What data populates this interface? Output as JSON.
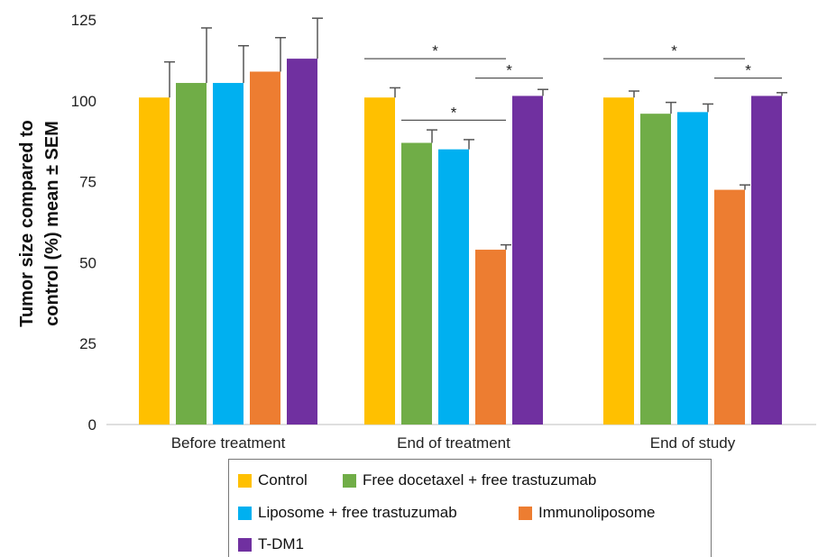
{
  "chart_data": {
    "type": "bar",
    "title": "",
    "xlabel": "",
    "ylabel_lines": [
      "Tumor size compared to",
      "control (%) mean ± SEM"
    ],
    "ylim": [
      0,
      125
    ],
    "yticks": [
      0,
      25,
      50,
      75,
      100,
      125
    ],
    "categories": [
      "Before treatment",
      "End of treatment",
      "End of study"
    ],
    "series": [
      {
        "name": "Control",
        "color": "#FFC000",
        "values": [
          101,
          101,
          101
        ],
        "errors": [
          11,
          3,
          2
        ]
      },
      {
        "name": "Free docetaxel + free trastuzumab",
        "color": "#70AD47",
        "values": [
          105.5,
          87,
          96
        ],
        "errors": [
          17,
          4,
          3.5
        ]
      },
      {
        "name": "Liposome + free trastuzumab",
        "color": "#00B0F0",
        "values": [
          105.5,
          85,
          96.5
        ],
        "errors": [
          11.5,
          3,
          2.5
        ]
      },
      {
        "name": "Immunoliposome",
        "color": "#ED7D31",
        "values": [
          109,
          54,
          72.5
        ],
        "errors": [
          10.5,
          1.5,
          1.5
        ]
      },
      {
        "name": "T-DM1",
        "color": "#7030A0",
        "values": [
          113,
          101.5,
          101.5
        ],
        "errors": [
          12.5,
          2,
          1
        ]
      }
    ],
    "significance": [
      {
        "category": 1,
        "from_series": 0,
        "to_series": 3,
        "y": 113,
        "label": "*"
      },
      {
        "category": 1,
        "from_series": 3,
        "to_series": 4,
        "y": 107,
        "label": "*"
      },
      {
        "category": 1,
        "from_series": 1,
        "to_series": 3,
        "y": 94,
        "label": "*"
      },
      {
        "category": 2,
        "from_series": 0,
        "to_series": 3,
        "y": 113,
        "label": "*"
      },
      {
        "category": 2,
        "from_series": 3,
        "to_series": 4,
        "y": 107,
        "label": "*"
      }
    ],
    "legend_position": "bottom"
  }
}
